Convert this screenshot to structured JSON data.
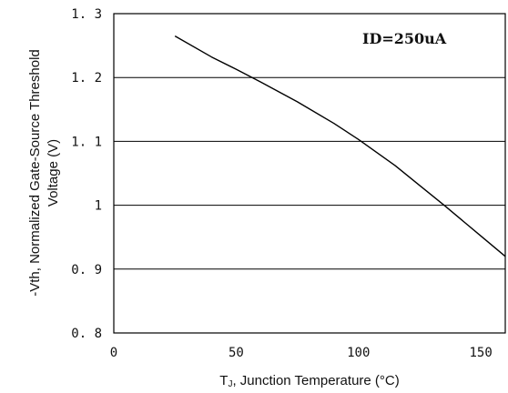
{
  "chart_data": {
    "type": "line",
    "title": "",
    "annotation": "ID=250uA",
    "xlabel_main": "T",
    "xlabel_sub": "J",
    "xlabel_rest": ", Junction Temperature (°C)",
    "ylabel_line1": "-Vth, Normalized Gate-Source Threshold",
    "ylabel_line2": "Voltage (V)",
    "xlim": [
      0,
      160
    ],
    "ylim": [
      0.8,
      1.3
    ],
    "x_ticks": [
      0,
      50,
      100,
      150
    ],
    "x_tick_labels": [
      "0",
      "50",
      "100",
      "150"
    ],
    "y_ticks": [
      1.3,
      1.2,
      1.1,
      1.0,
      0.9,
      0.8
    ],
    "y_tick_labels": [
      "1. 3",
      "1. 2",
      "1. 1",
      "1",
      "0. 9",
      "0. 8"
    ],
    "grid": "horizontal",
    "series": [
      {
        "x": [
          25,
          40,
          50,
          60,
          75,
          90,
          100,
          115,
          125,
          135,
          150,
          160
        ],
        "y": [
          1.265,
          1.232,
          1.213,
          1.193,
          1.162,
          1.128,
          1.103,
          1.062,
          1.031,
          1.0,
          0.952,
          0.92
        ]
      }
    ]
  }
}
